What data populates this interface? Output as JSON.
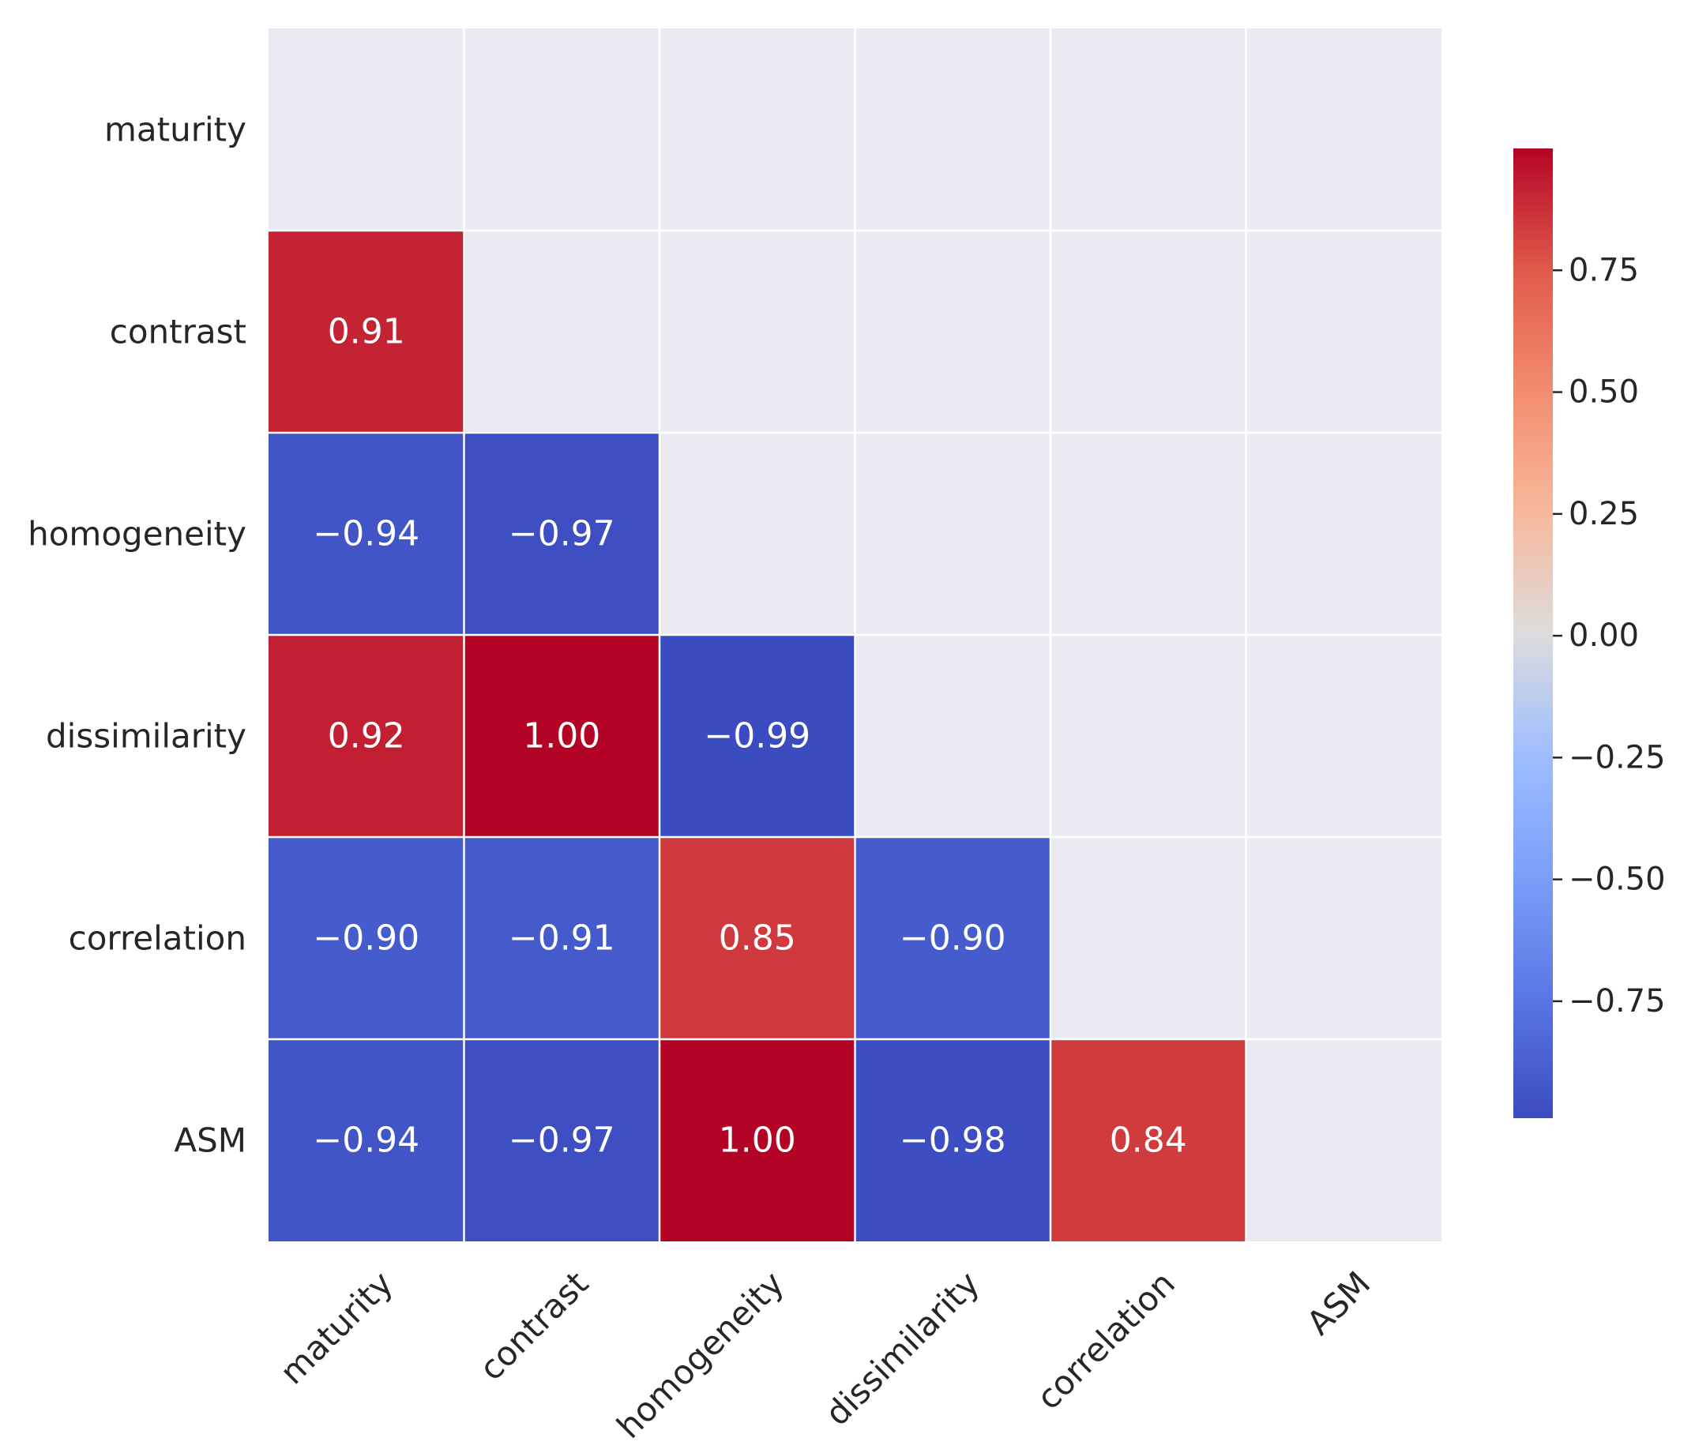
{
  "chart_data": {
    "type": "heatmap",
    "title": "",
    "xlabel": "",
    "ylabel": "",
    "variables": [
      "maturity",
      "contrast",
      "homogeneity",
      "dissimilarity",
      "correlation",
      "ASM"
    ],
    "mask": "upper-triangle-including-diagonal",
    "cells": [
      {
        "row": "contrast",
        "col": "maturity",
        "value": 0.91,
        "label": "0.91"
      },
      {
        "row": "homogeneity",
        "col": "maturity",
        "value": -0.94,
        "label": "−0.94"
      },
      {
        "row": "homogeneity",
        "col": "contrast",
        "value": -0.97,
        "label": "−0.97"
      },
      {
        "row": "dissimilarity",
        "col": "maturity",
        "value": 0.92,
        "label": "0.92"
      },
      {
        "row": "dissimilarity",
        "col": "contrast",
        "value": 1.0,
        "label": "1.00"
      },
      {
        "row": "dissimilarity",
        "col": "homogeneity",
        "value": -0.99,
        "label": "−0.99"
      },
      {
        "row": "correlation",
        "col": "maturity",
        "value": -0.9,
        "label": "−0.90"
      },
      {
        "row": "correlation",
        "col": "contrast",
        "value": -0.91,
        "label": "−0.91"
      },
      {
        "row": "correlation",
        "col": "homogeneity",
        "value": 0.85,
        "label": "0.85"
      },
      {
        "row": "correlation",
        "col": "dissimilarity",
        "value": -0.9,
        "label": "−0.90"
      },
      {
        "row": "ASM",
        "col": "maturity",
        "value": -0.94,
        "label": "−0.94"
      },
      {
        "row": "ASM",
        "col": "contrast",
        "value": -0.97,
        "label": "−0.97"
      },
      {
        "row": "ASM",
        "col": "homogeneity",
        "value": 1.0,
        "label": "1.00"
      },
      {
        "row": "ASM",
        "col": "dissimilarity",
        "value": -0.98,
        "label": "−0.98"
      },
      {
        "row": "ASM",
        "col": "correlation",
        "value": 0.84,
        "label": "0.84"
      }
    ],
    "colorbar": {
      "colormap": "coolwarm",
      "vmin": -0.99,
      "vmax": 1.0,
      "ticks": [
        0.75,
        0.5,
        0.25,
        0.0,
        -0.25,
        -0.5,
        -0.75
      ],
      "tick_labels": [
        "0.75",
        "0.50",
        "0.25",
        "0.00",
        "−0.25",
        "−0.50",
        "−0.75"
      ]
    },
    "colors": {
      "masked_background": "#e9eaf2",
      "grid_line": "#ffffff",
      "text": "#262626",
      "annotation": "#ffffff"
    }
  }
}
